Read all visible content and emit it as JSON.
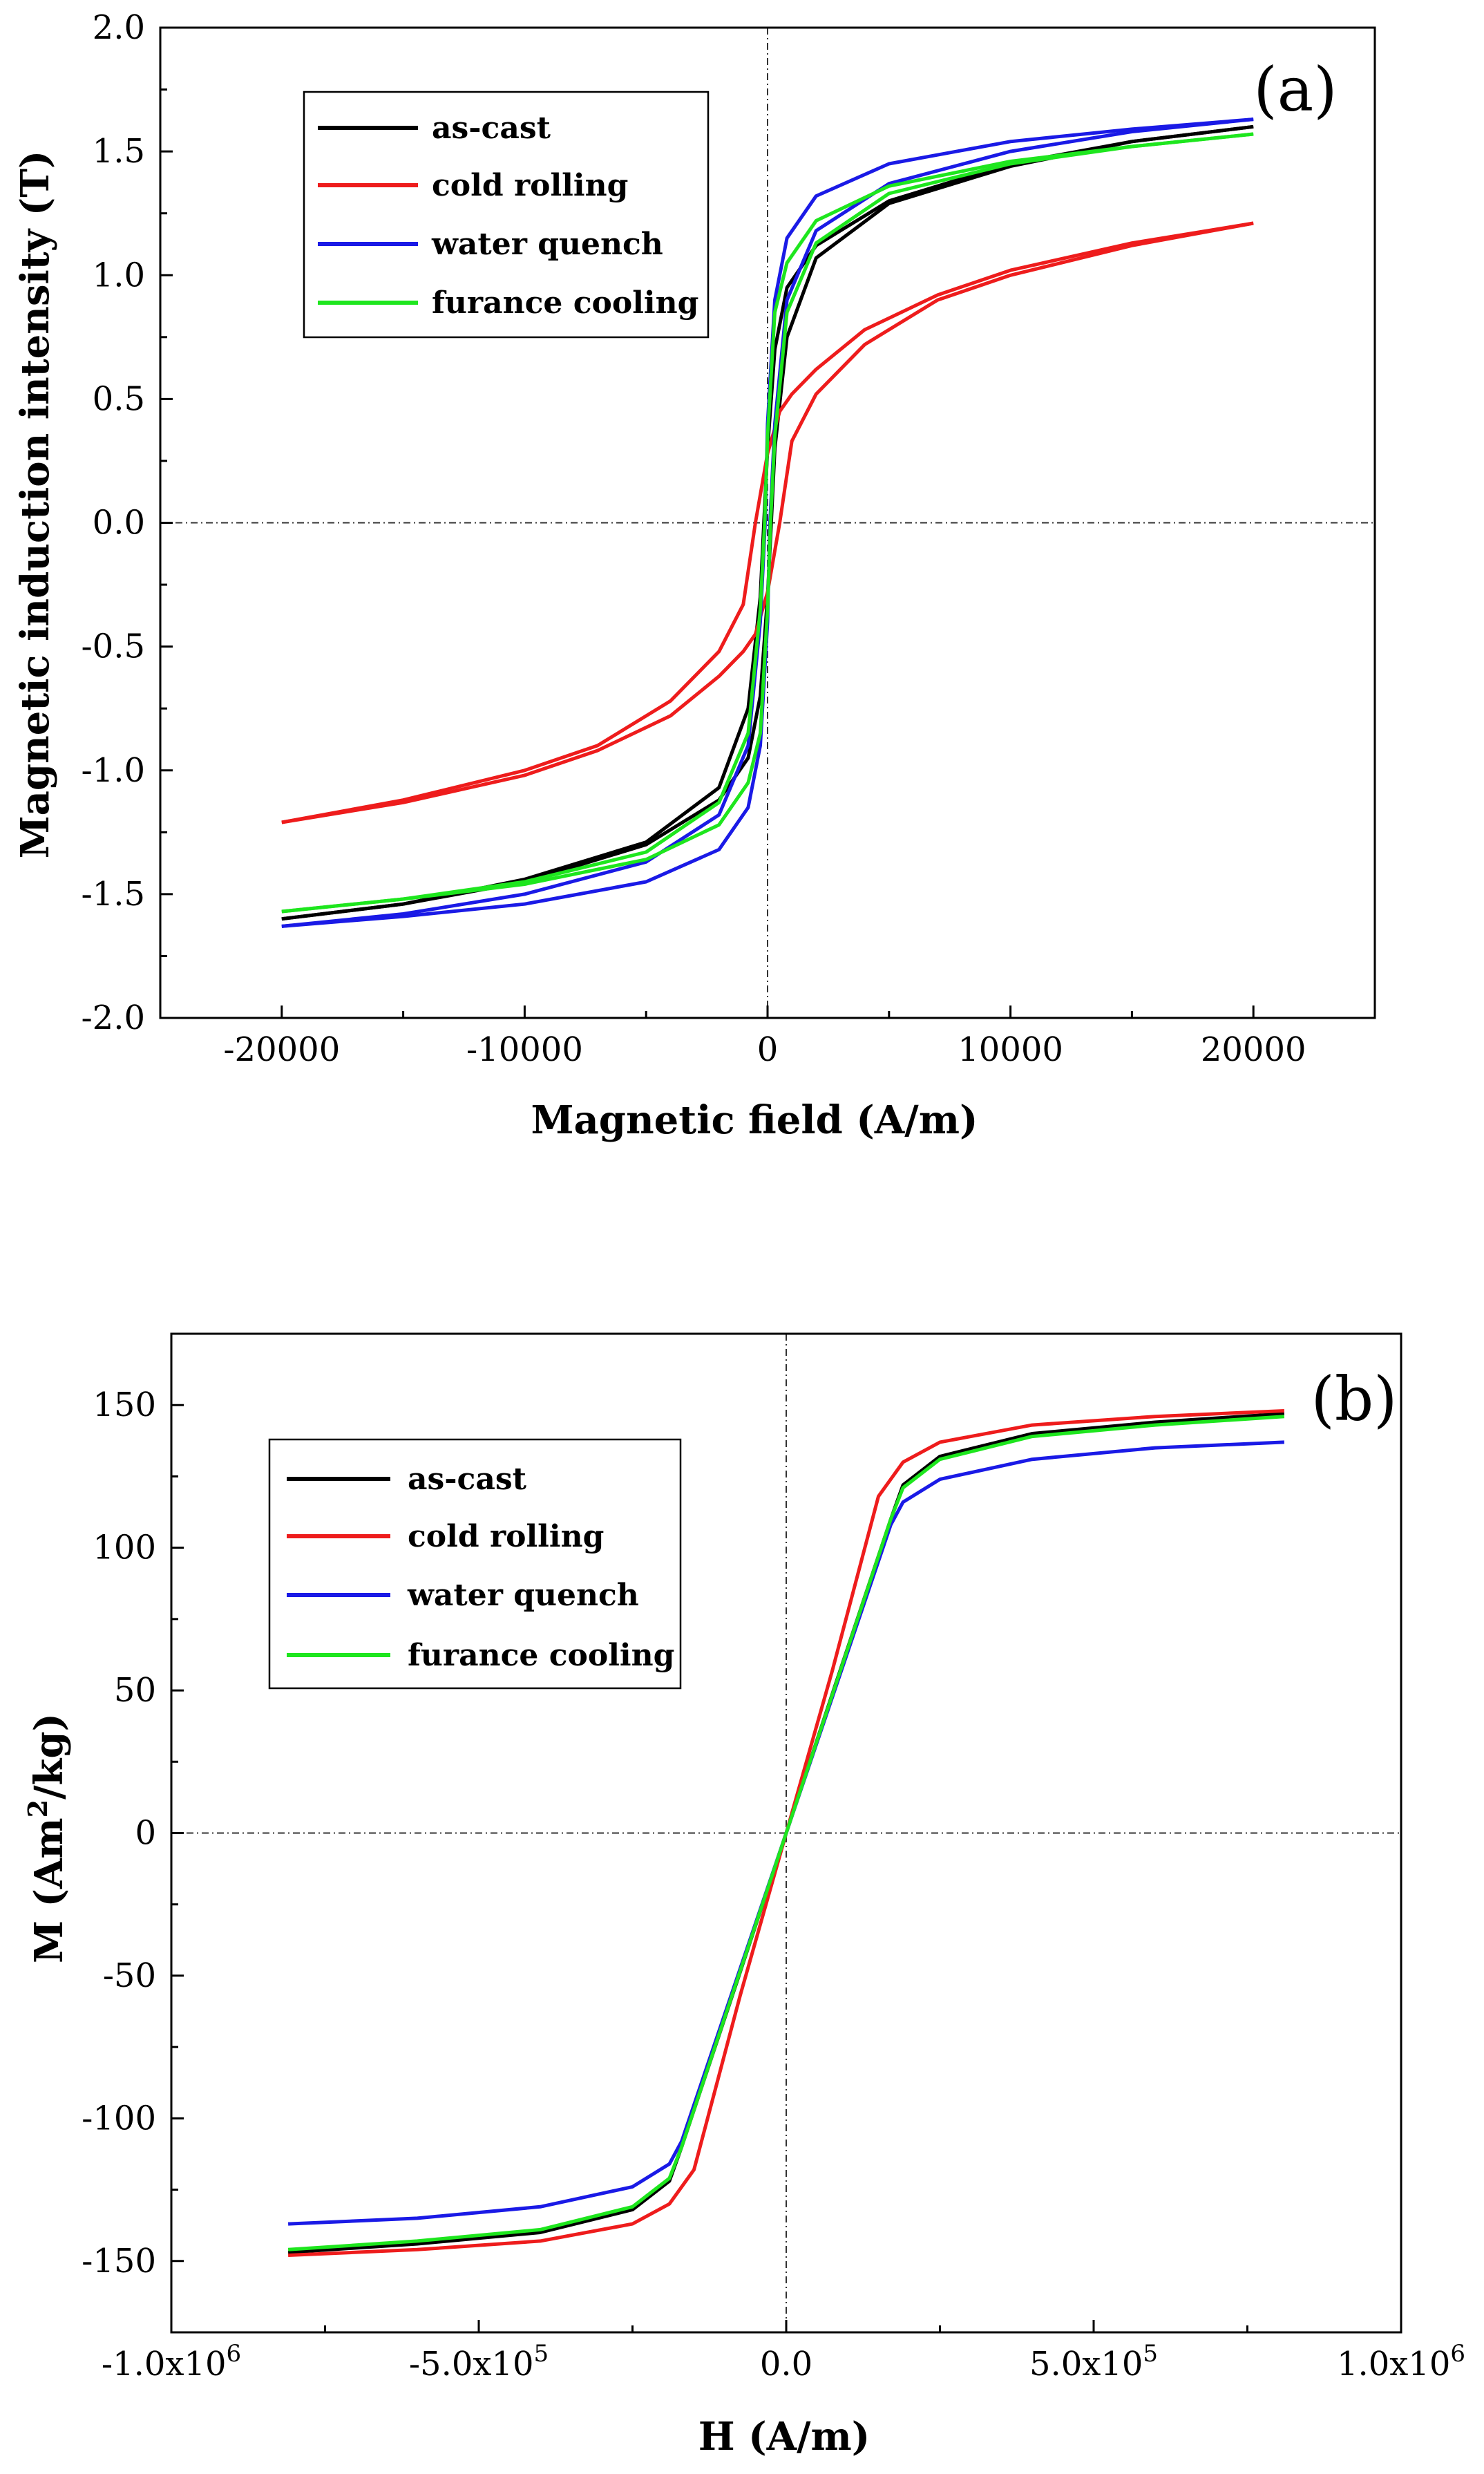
{
  "chart_data": [
    {
      "type": "line",
      "panel_label": "(a)",
      "xlabel": "Magnetic field (A/m)",
      "ylabel": "Magnetic induction intensity (T)",
      "xlim": [
        -25000,
        25000
      ],
      "ylim": [
        -2.0,
        2.0
      ],
      "xticks": [
        -20000,
        -10000,
        0,
        10000,
        20000
      ],
      "xtick_labels": [
        "-20000",
        "-10000",
        "0",
        "10000",
        "20000"
      ],
      "yticks": [
        -2.0,
        -1.5,
        -1.0,
        -0.5,
        0.0,
        0.5,
        1.0,
        1.5,
        2.0
      ],
      "ytick_labels": [
        "-2.0",
        "-1.5",
        "-1.0",
        "-0.5",
        "0.0",
        "0.5",
        "1.0",
        "1.5",
        "2.0"
      ],
      "legend_position": "top-left",
      "series": [
        {
          "name": "as-cast",
          "color": "#000000",
          "upper": [
            [
              -20000,
              -1.6
            ],
            [
              -15000,
              -1.54
            ],
            [
              -10000,
              -1.44
            ],
            [
              -5000,
              -1.29
            ],
            [
              -2000,
              -1.07
            ],
            [
              -800,
              -0.75
            ],
            [
              -300,
              -0.3
            ],
            [
              -150,
              0.0
            ],
            [
              0,
              0.3
            ],
            [
              300,
              0.7
            ],
            [
              800,
              0.95
            ],
            [
              2000,
              1.12
            ],
            [
              5000,
              1.3
            ],
            [
              10000,
              1.45
            ],
            [
              15000,
              1.54
            ],
            [
              20000,
              1.6
            ]
          ],
          "lower": [
            [
              -20000,
              -1.6
            ],
            [
              -15000,
              -1.54
            ],
            [
              -10000,
              -1.45
            ],
            [
              -5000,
              -1.3
            ],
            [
              -2000,
              -1.12
            ],
            [
              -800,
              -0.95
            ],
            [
              -300,
              -0.7
            ],
            [
              0,
              -0.3
            ],
            [
              150,
              0.0
            ],
            [
              300,
              0.3
            ],
            [
              800,
              0.75
            ],
            [
              2000,
              1.07
            ],
            [
              5000,
              1.29
            ],
            [
              10000,
              1.44
            ],
            [
              15000,
              1.54
            ],
            [
              20000,
              1.6
            ]
          ]
        },
        {
          "name": "cold rolling",
          "color": "#ee1c1c",
          "upper": [
            [
              -20000,
              -1.21
            ],
            [
              -15000,
              -1.12
            ],
            [
              -10000,
              -1.0
            ],
            [
              -7000,
              -0.9
            ],
            [
              -4000,
              -0.72
            ],
            [
              -2000,
              -0.52
            ],
            [
              -1000,
              -0.33
            ],
            [
              -500,
              0.0
            ],
            [
              0,
              0.28
            ],
            [
              500,
              0.45
            ],
            [
              1000,
              0.52
            ],
            [
              2000,
              0.62
            ],
            [
              4000,
              0.78
            ],
            [
              7000,
              0.92
            ],
            [
              10000,
              1.02
            ],
            [
              15000,
              1.13
            ],
            [
              20000,
              1.21
            ]
          ],
          "lower": [
            [
              -20000,
              -1.21
            ],
            [
              -15000,
              -1.13
            ],
            [
              -10000,
              -1.02
            ],
            [
              -7000,
              -0.92
            ],
            [
              -4000,
              -0.78
            ],
            [
              -2000,
              -0.62
            ],
            [
              -1000,
              -0.52
            ],
            [
              -500,
              -0.45
            ],
            [
              0,
              -0.28
            ],
            [
              500,
              0.0
            ],
            [
              1000,
              0.33
            ],
            [
              2000,
              0.52
            ],
            [
              4000,
              0.72
            ],
            [
              7000,
              0.9
            ],
            [
              10000,
              1.0
            ],
            [
              15000,
              1.12
            ],
            [
              20000,
              1.21
            ]
          ]
        },
        {
          "name": "water quench",
          "color": "#1a1ae6",
          "upper": [
            [
              -20000,
              -1.63
            ],
            [
              -15000,
              -1.58
            ],
            [
              -10000,
              -1.5
            ],
            [
              -5000,
              -1.37
            ],
            [
              -2000,
              -1.18
            ],
            [
              -800,
              -0.9
            ],
            [
              -300,
              -0.4
            ],
            [
              -100,
              0.0
            ],
            [
              0,
              0.4
            ],
            [
              300,
              0.9
            ],
            [
              800,
              1.15
            ],
            [
              2000,
              1.32
            ],
            [
              5000,
              1.45
            ],
            [
              10000,
              1.54
            ],
            [
              15000,
              1.59
            ],
            [
              20000,
              1.63
            ]
          ],
          "lower": [
            [
              -20000,
              -1.63
            ],
            [
              -15000,
              -1.59
            ],
            [
              -10000,
              -1.54
            ],
            [
              -5000,
              -1.45
            ],
            [
              -2000,
              -1.32
            ],
            [
              -800,
              -1.15
            ],
            [
              -300,
              -0.9
            ],
            [
              0,
              -0.4
            ],
            [
              100,
              0.0
            ],
            [
              300,
              0.4
            ],
            [
              800,
              0.9
            ],
            [
              2000,
              1.18
            ],
            [
              5000,
              1.37
            ],
            [
              10000,
              1.5
            ],
            [
              15000,
              1.58
            ],
            [
              20000,
              1.63
            ]
          ]
        },
        {
          "name": "furance cooling",
          "color": "#1ee61e",
          "upper": [
            [
              -20000,
              -1.57
            ],
            [
              -15000,
              -1.52
            ],
            [
              -10000,
              -1.45
            ],
            [
              -5000,
              -1.33
            ],
            [
              -2000,
              -1.13
            ],
            [
              -800,
              -0.85
            ],
            [
              -300,
              -0.35
            ],
            [
              -120,
              0.0
            ],
            [
              0,
              0.35
            ],
            [
              300,
              0.85
            ],
            [
              800,
              1.05
            ],
            [
              2000,
              1.22
            ],
            [
              5000,
              1.36
            ],
            [
              10000,
              1.46
            ],
            [
              15000,
              1.52
            ],
            [
              20000,
              1.57
            ]
          ],
          "lower": [
            [
              -20000,
              -1.57
            ],
            [
              -15000,
              -1.52
            ],
            [
              -10000,
              -1.46
            ],
            [
              -5000,
              -1.36
            ],
            [
              -2000,
              -1.22
            ],
            [
              -800,
              -1.05
            ],
            [
              -300,
              -0.85
            ],
            [
              0,
              -0.35
            ],
            [
              120,
              0.0
            ],
            [
              300,
              0.35
            ],
            [
              800,
              0.85
            ],
            [
              2000,
              1.13
            ],
            [
              5000,
              1.33
            ],
            [
              10000,
              1.45
            ],
            [
              15000,
              1.52
            ],
            [
              20000,
              1.57
            ]
          ]
        }
      ]
    },
    {
      "type": "line",
      "panel_label": "(b)",
      "xlabel": "H (A/m)",
      "ylabel_main": "M (Am",
      "ylabel_superscript": "2",
      "ylabel_end": "/kg)",
      "xlim": [
        -1000000,
        1000000
      ],
      "ylim": [
        -175,
        175
      ],
      "xticks": [
        -1000000,
        -500000,
        0,
        500000,
        1000000
      ],
      "xtick_labels": [
        {
          "base": "-1.0x10",
          "exp": "6"
        },
        {
          "base": "-5.0x10",
          "exp": "5"
        },
        {
          "base": "0.0",
          "exp": ""
        },
        {
          "base": "5.0x10",
          "exp": "5"
        },
        {
          "base": "1.0x10",
          "exp": "6"
        }
      ],
      "yticks": [
        -150,
        -100,
        -50,
        0,
        50,
        100,
        150
      ],
      "ytick_labels": [
        "-150",
        "-100",
        "-50",
        "0",
        "50",
        "100",
        "150"
      ],
      "legend_position": "top-left",
      "series": [
        {
          "name": "as-cast",
          "color": "#000000",
          "curve": [
            [
              -810000,
              -147
            ],
            [
              -600000,
              -144
            ],
            [
              -400000,
              -140
            ],
            [
              -250000,
              -132
            ],
            [
              -190000,
              -122
            ],
            [
              -170000,
              -110
            ],
            [
              -80000,
              -52
            ],
            [
              0,
              0
            ],
            [
              80000,
              52
            ],
            [
              170000,
              110
            ],
            [
              190000,
              122
            ],
            [
              250000,
              132
            ],
            [
              400000,
              140
            ],
            [
              600000,
              144
            ],
            [
              810000,
              147
            ]
          ]
        },
        {
          "name": "cold rolling",
          "color": "#ee1c1c",
          "curve": [
            [
              -810000,
              -148
            ],
            [
              -600000,
              -146
            ],
            [
              -400000,
              -143
            ],
            [
              -250000,
              -137
            ],
            [
              -190000,
              -130
            ],
            [
              -150000,
              -118
            ],
            [
              -75000,
              -57
            ],
            [
              0,
              0
            ],
            [
              75000,
              57
            ],
            [
              150000,
              118
            ],
            [
              190000,
              130
            ],
            [
              250000,
              137
            ],
            [
              400000,
              143
            ],
            [
              600000,
              146
            ],
            [
              810000,
              148
            ]
          ]
        },
        {
          "name": "water quench",
          "color": "#1a1ae6",
          "curve": [
            [
              -810000,
              -137
            ],
            [
              -600000,
              -135
            ],
            [
              -400000,
              -131
            ],
            [
              -250000,
              -124
            ],
            [
              -190000,
              -116
            ],
            [
              -170000,
              -108
            ],
            [
              -85000,
              -54
            ],
            [
              0,
              0
            ],
            [
              85000,
              54
            ],
            [
              170000,
              108
            ],
            [
              190000,
              116
            ],
            [
              250000,
              124
            ],
            [
              400000,
              131
            ],
            [
              600000,
              135
            ],
            [
              810000,
              137
            ]
          ]
        },
        {
          "name": "furance cooling",
          "color": "#1ee61e",
          "curve": [
            [
              -810000,
              -146
            ],
            [
              -600000,
              -143
            ],
            [
              -400000,
              -139
            ],
            [
              -250000,
              -131
            ],
            [
              -190000,
              -121
            ],
            [
              -170000,
              -110
            ],
            [
              -82000,
              -53
            ],
            [
              0,
              0
            ],
            [
              82000,
              53
            ],
            [
              170000,
              110
            ],
            [
              190000,
              121
            ],
            [
              250000,
              131
            ],
            [
              400000,
              139
            ],
            [
              600000,
              143
            ],
            [
              810000,
              146
            ]
          ]
        }
      ]
    }
  ]
}
